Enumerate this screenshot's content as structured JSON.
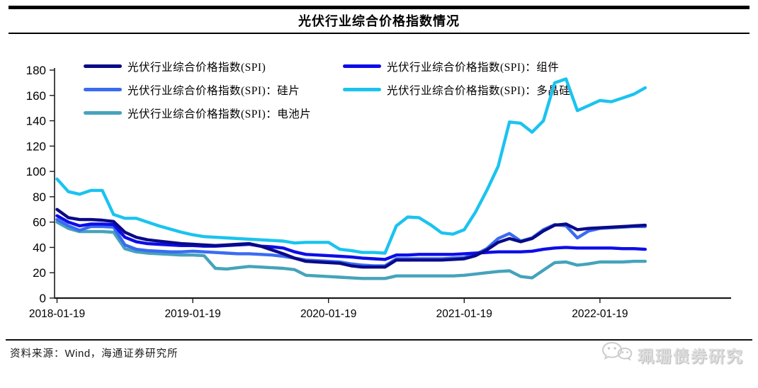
{
  "frame": {
    "title": "光伏行业综合价格指数情况"
  },
  "source_note": {
    "label": "资料来源：",
    "wind": "Wind",
    "rest": "，海通证券研究所"
  },
  "watermark": {
    "text": "珮珊债券研究",
    "icon": "wechat-chat-bubbles-icon",
    "color": "#d9d9d9"
  },
  "chart_data": {
    "type": "line",
    "title": "光伏行业综合价格指数情况",
    "x_interval": "monthly",
    "x_start": "2018-01",
    "x_end": "2022-05",
    "x_tick_labels": [
      "2018-01-19",
      "2019-01-19",
      "2020-01-19",
      "2021-01-19",
      "2022-01-19"
    ],
    "x_tick_month_indices": [
      0,
      12,
      24,
      36,
      48
    ],
    "ylim": [
      0,
      180
    ],
    "ytick_step": 20,
    "grid": false,
    "legend_position": "top-left-two-columns",
    "axis_color": "#1a1a1a",
    "series": [
      {
        "name": "光伏行业综合价格指数(SPI)",
        "color": "#0a0a87",
        "values": [
          70,
          63.5,
          62,
          62,
          61.5,
          60.5,
          52,
          48,
          46,
          45,
          44,
          43,
          42.5,
          42,
          41.5,
          42,
          42.5,
          43,
          41,
          38,
          35,
          31.5,
          29,
          28.5,
          28,
          27.5,
          25.5,
          24.5,
          24.5,
          24.5,
          30,
          30,
          30,
          30,
          30,
          30.5,
          31,
          33.5,
          38,
          44,
          47,
          44.5,
          47,
          53,
          57.5,
          58.5,
          54,
          55,
          55.5,
          56,
          56.5,
          57,
          57.5
        ]
      },
      {
        "name": "光伏行业综合价格指数(SPI)：组件",
        "color": "#0d0de8",
        "values": [
          65,
          60,
          57,
          58.5,
          58.5,
          58,
          48,
          44.5,
          43,
          42.5,
          42,
          41.5,
          41.5,
          41,
          41,
          41.5,
          42,
          42.5,
          41,
          40.5,
          39.5,
          36.5,
          34.5,
          34,
          33.5,
          33,
          32.5,
          31.5,
          31,
          30.5,
          34,
          34,
          34.5,
          34.5,
          34.5,
          34.5,
          35,
          35.5,
          36,
          36.5,
          36.5,
          36.5,
          37,
          38.5,
          39.5,
          40,
          39.5,
          39.5,
          39.5,
          39.5,
          39,
          39,
          38.5
        ]
      },
      {
        "name": "光伏行业综合价格指数(SPI)：硅片",
        "color": "#3a6bf2",
        "values": [
          62,
          57,
          53.5,
          56.5,
          56.5,
          56,
          42,
          38.5,
          37.5,
          37,
          36.5,
          36.5,
          37,
          36.5,
          36,
          35.5,
          35,
          35,
          34.5,
          34,
          33,
          31.5,
          30,
          29.5,
          29,
          28.5,
          27,
          26,
          25.5,
          25.5,
          31,
          31,
          31,
          31,
          31,
          31.5,
          32,
          34.5,
          39,
          47,
          51,
          45,
          47.5,
          54,
          58,
          57,
          47.5,
          53,
          55,
          55.5,
          56,
          56.5,
          56.5
        ]
      },
      {
        "name": "光伏行业综合价格指数(SPI)：多晶硅",
        "color": "#1bc3ef",
        "values": [
          94,
          84,
          82,
          85,
          85,
          66,
          63,
          63,
          60,
          57,
          54.5,
          52,
          50,
          48.5,
          48,
          47.5,
          47,
          46.5,
          46,
          45.5,
          45,
          43.5,
          44,
          44,
          44,
          38.5,
          37.5,
          36,
          36,
          35.5,
          57,
          64,
          63.5,
          58,
          51.5,
          50.5,
          54,
          68,
          85,
          104,
          139,
          138,
          131,
          140,
          170,
          173,
          148,
          152,
          156,
          155,
          158,
          161,
          166
        ]
      },
      {
        "name": "光伏行业综合价格指数(SPI)：电池片",
        "color": "#45a3bb",
        "values": [
          60,
          55,
          52.5,
          52.5,
          52.5,
          52,
          39,
          36.5,
          35.5,
          35,
          34.5,
          34,
          34,
          33.5,
          23.5,
          23,
          24,
          25,
          24.5,
          24,
          23.5,
          22.5,
          18,
          17.5,
          17,
          16.5,
          16,
          15.5,
          15.5,
          15.5,
          17.5,
          17.5,
          17.5,
          17.5,
          17.5,
          17.5,
          18,
          19,
          20,
          21,
          21.5,
          17,
          16,
          22,
          28,
          28.5,
          26,
          27,
          28.5,
          28.5,
          28.5,
          29,
          29
        ]
      }
    ]
  }
}
